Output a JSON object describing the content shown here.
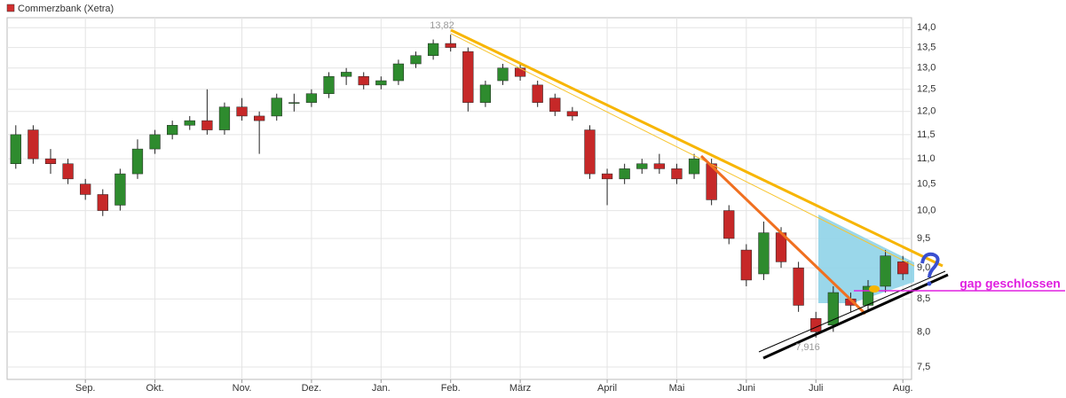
{
  "chart_data": {
    "type": "candlestick",
    "log_scale": true,
    "grid": true,
    "up_color": "#2e8b2e",
    "down_color": "#c62828",
    "legend_color": "#d32f2f",
    "categories": [
      null,
      null,
      null,
      null,
      "Sep.",
      null,
      null,
      null,
      "Okt.",
      null,
      null,
      null,
      null,
      "Nov.",
      null,
      null,
      null,
      "Dez.",
      null,
      null,
      null,
      "Jan.",
      null,
      null,
      null,
      "Feb.",
      null,
      null,
      null,
      "März",
      null,
      null,
      null,
      null,
      "April",
      null,
      null,
      null,
      "Mai",
      null,
      null,
      null,
      "Juni",
      null,
      null,
      null,
      "Juli",
      null,
      null,
      null,
      null,
      "Aug."
    ],
    "series": [
      {
        "name": "Commerzbank (Xetra)",
        "open": [
          10.9,
          11.6,
          11.0,
          10.9,
          10.5,
          10.3,
          10.1,
          10.7,
          11.2,
          11.5,
          11.7,
          11.8,
          11.6,
          12.1,
          11.9,
          11.9,
          12.2,
          12.2,
          12.4,
          12.8,
          12.8,
          12.6,
          12.7,
          13.1,
          13.3,
          13.6,
          13.4,
          12.2,
          12.7,
          13.0,
          12.6,
          12.3,
          12.0,
          11.6,
          10.7,
          10.6,
          10.8,
          10.9,
          10.8,
          10.7,
          10.9,
          10.0,
          9.3,
          8.9,
          9.6,
          9.0,
          8.2,
          8.1,
          8.5,
          8.4,
          8.7,
          9.1
        ],
        "high": [
          11.7,
          11.7,
          11.2,
          11.0,
          10.6,
          10.4,
          10.8,
          11.4,
          11.6,
          11.8,
          11.9,
          12.5,
          12.2,
          12.3,
          12.0,
          12.4,
          12.4,
          12.5,
          12.9,
          13.0,
          12.9,
          12.8,
          13.2,
          13.4,
          13.7,
          13.82,
          13.5,
          12.7,
          13.1,
          13.1,
          12.7,
          12.4,
          12.1,
          11.7,
          10.8,
          10.9,
          11.0,
          11.1,
          10.9,
          11.1,
          11.0,
          10.1,
          9.4,
          9.8,
          9.7,
          9.1,
          8.3,
          8.7,
          8.6,
          8.8,
          9.3,
          9.2
        ],
        "low": [
          10.8,
          10.9,
          10.7,
          10.5,
          10.2,
          9.9,
          10.0,
          10.6,
          11.1,
          11.4,
          11.6,
          11.5,
          11.5,
          11.8,
          11.1,
          11.8,
          12.0,
          12.1,
          12.3,
          12.6,
          12.5,
          12.5,
          12.6,
          13.0,
          13.2,
          13.4,
          12.0,
          12.1,
          12.6,
          12.7,
          12.1,
          11.9,
          11.8,
          10.6,
          10.1,
          10.5,
          10.7,
          10.7,
          10.5,
          10.6,
          10.1,
          9.4,
          8.7,
          8.8,
          9.0,
          8.3,
          7.916,
          8.0,
          8.3,
          8.3,
          8.6,
          8.8
        ],
        "close": [
          11.5,
          11.0,
          10.9,
          10.6,
          10.3,
          10.0,
          10.7,
          11.2,
          11.5,
          11.7,
          11.8,
          11.6,
          12.1,
          11.9,
          11.8,
          12.3,
          12.2,
          12.4,
          12.8,
          12.9,
          12.6,
          12.7,
          13.1,
          13.3,
          13.6,
          13.5,
          12.2,
          12.6,
          13.0,
          12.8,
          12.2,
          12.0,
          11.9,
          10.7,
          10.6,
          10.8,
          10.9,
          10.8,
          10.6,
          11.0,
          10.2,
          9.5,
          8.8,
          9.6,
          9.1,
          8.4,
          8.0,
          8.6,
          8.4,
          8.7,
          9.2,
          8.9
        ]
      }
    ],
    "ylim": [
      7.33,
      14.26
    ],
    "yticks": [
      {
        "value": 7.5,
        "label": "7,5"
      },
      {
        "value": 8,
        "label": "8,0"
      },
      {
        "value": 8.5,
        "label": "8,5"
      },
      {
        "value": 9,
        "label": "9,0"
      },
      {
        "value": 9.5,
        "label": "9,5"
      },
      {
        "value": 10,
        "label": "10,0"
      },
      {
        "value": 10.5,
        "label": "10,5"
      },
      {
        "value": 11,
        "label": "11,0"
      },
      {
        "value": 11.5,
        "label": "11,5"
      },
      {
        "value": 12,
        "label": "12,0"
      },
      {
        "value": 12.5,
        "label": "12,5"
      },
      {
        "value": 13,
        "label": "13,0"
      },
      {
        "value": 13.5,
        "label": "13,5"
      },
      {
        "value": 14,
        "label": "14,0"
      }
    ],
    "annotations": [
      "13,82",
      "7,916",
      "gap geschlossen"
    ]
  }
}
